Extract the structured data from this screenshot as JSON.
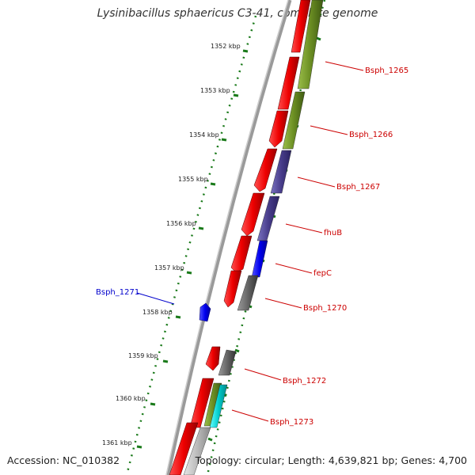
{
  "title": "Lysinibacillus sphaericus C3-41, complete genome",
  "footer": {
    "accession": "Accession: NC_010382",
    "summary": "Topology: circular; Length: 4,639,821 bp; Genes: 4,700"
  },
  "scale_labels": [
    "1352 kbp",
    "1353 kbp",
    "1354 kbp",
    "1355 kbp",
    "1356 kbp",
    "1357 kbp",
    "1358 kbp",
    "1359 kbp",
    "1360 kbp",
    "1361 kbp"
  ],
  "gene_labels": [
    {
      "name": "Bsph_1265",
      "color": "#cc0000"
    },
    {
      "name": "Bsph_1266",
      "color": "#cc0000"
    },
    {
      "name": "Bsph_1267",
      "color": "#cc0000"
    },
    {
      "name": "fhuB",
      "color": "#cc0000"
    },
    {
      "name": "fepC",
      "color": "#cc0000"
    },
    {
      "name": "Bsph_1270",
      "color": "#cc0000"
    },
    {
      "name": "Bsph_1271",
      "color": "#0000cc"
    },
    {
      "name": "Bsph_1272",
      "color": "#cc0000"
    },
    {
      "name": "Bsph_1273",
      "color": "#cc0000"
    }
  ],
  "colors": {
    "cds_red": "#ee0000",
    "olive": "#6b8e23",
    "slate": "#483d8b",
    "blue": "#0000ee",
    "gray": "#666666",
    "cyan": "#00cccc",
    "light_gray": "#bbbbbb",
    "ticks": "#1a7a1a"
  }
}
